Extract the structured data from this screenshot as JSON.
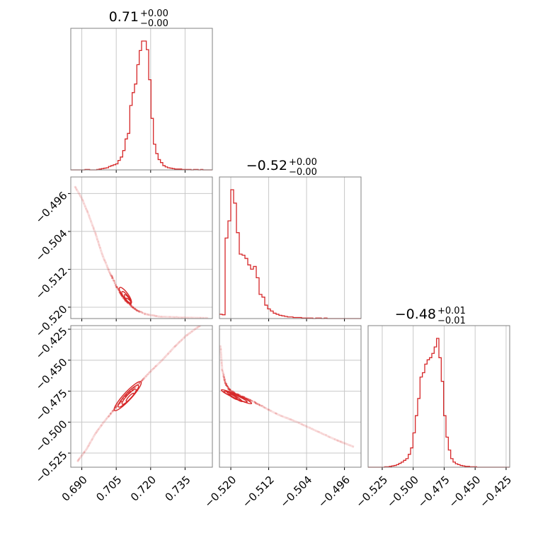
{
  "chart_data": {
    "type": "corner",
    "color": "#d62728",
    "grid": true,
    "params": [
      {
        "title": {
          "value": "0.71",
          "plus": "+0.00",
          "minus": "−0.00"
        },
        "range": [
          0.6852,
          0.7469
        ],
        "ticks": [
          0.69,
          0.705,
          0.72,
          0.735
        ],
        "tick_labels": [
          "0.690",
          "0.705",
          "0.720",
          "0.735"
        ],
        "hist": {
          "x0": 0.6852,
          "x1": 0.7469,
          "counts": [
            0,
            0,
            0,
            0,
            0,
            0,
            1,
            1,
            0,
            0,
            0,
            1,
            2,
            3,
            4,
            5,
            8,
            10,
            12,
            14,
            22,
            30,
            45,
            72,
            85,
            150,
            180,
            200,
            245,
            278,
            300,
            300,
            280,
            210,
            120,
            60,
            38,
            24,
            17,
            10,
            7,
            5,
            4,
            3,
            2,
            2,
            2,
            1,
            1,
            1,
            1,
            0,
            1,
            1,
            0,
            1,
            0,
            0,
            0,
            0
          ]
        }
      },
      {
        "title": {
          "value": "−0.52",
          "plus": "+0.00",
          "minus": "−0.00"
        },
        "range": [
          -0.5224,
          -0.4925
        ],
        "ticks": [
          -0.52,
          -0.512,
          -0.504,
          -0.496
        ],
        "tick_labels": [
          "−0.520",
          "−0.512",
          "−0.504",
          "−0.496"
        ],
        "hist": {
          "x0": -0.5224,
          "x1": -0.4925,
          "counts": [
            8,
            7,
            150,
            182,
            240,
            215,
            160,
            120,
            118,
            112,
            100,
            92,
            97,
            76,
            45,
            40,
            25,
            18,
            14,
            10,
            8,
            6,
            5,
            4,
            3,
            3,
            2,
            2,
            2,
            1,
            1,
            1,
            1,
            0,
            1,
            1,
            0,
            1,
            0,
            0,
            0,
            0,
            0,
            0,
            0,
            0,
            0,
            0,
            0,
            0
          ]
        }
      },
      {
        "title": {
          "value": "−0.48",
          "plus": "+0.01",
          "minus": "−0.01"
        },
        "range": [
          -0.5364,
          -0.4221
        ],
        "ticks": [
          -0.525,
          -0.5,
          -0.475,
          -0.45,
          -0.425
        ],
        "tick_labels": [
          "−0.525",
          "−0.500",
          "−0.475",
          "−0.450",
          "−0.425"
        ],
        "hist": {
          "x0": -0.5364,
          "x1": -0.4221,
          "counts": [
            0,
            0,
            0,
            0,
            0,
            0,
            0,
            1,
            1,
            2,
            3,
            4,
            6,
            9,
            12,
            16,
            20,
            30,
            45,
            80,
            120,
            160,
            210,
            220,
            240,
            250,
            255,
            265,
            280,
            300,
            255,
            200,
            120,
            70,
            40,
            20,
            12,
            8,
            6,
            4,
            3,
            2,
            2,
            1,
            1,
            1,
            0,
            0,
            0,
            0,
            0,
            0,
            0,
            0,
            0,
            0,
            0,
            0,
            0,
            0
          ]
        }
      }
    ],
    "pairs": [
      {
        "x_param": 0,
        "y_param": 1,
        "ridge": [
          [
            0.687,
            -0.4945
          ],
          [
            0.69,
            -0.497
          ],
          [
            0.693,
            -0.5005
          ],
          [
            0.696,
            -0.5045
          ],
          [
            0.699,
            -0.509
          ],
          [
            0.702,
            -0.5125
          ],
          [
            0.705,
            -0.5155
          ],
          [
            0.708,
            -0.518
          ],
          [
            0.711,
            -0.5195
          ],
          [
            0.714,
            -0.5207
          ],
          [
            0.718,
            -0.5215
          ],
          [
            0.724,
            -0.522
          ],
          [
            0.735,
            -0.5222
          ],
          [
            0.745,
            -0.5223
          ]
        ],
        "contours": [
          {
            "cx": 0.709,
            "cy": -0.5175,
            "a": 0.0042,
            "b": 0.0006
          },
          {
            "cx": 0.7095,
            "cy": -0.518,
            "a": 0.0033,
            "b": 0.00045
          },
          {
            "cx": 0.71,
            "cy": -0.5183,
            "a": 0.0024,
            "b": 0.00032
          },
          {
            "cx": 0.7103,
            "cy": -0.5186,
            "a": 0.0014,
            "b": 0.0002
          }
        ]
      },
      {
        "x_param": 0,
        "y_param": 2,
        "ridge": [
          [
            0.688,
            -0.532
          ],
          [
            0.692,
            -0.522
          ],
          [
            0.696,
            -0.509
          ],
          [
            0.7,
            -0.499
          ],
          [
            0.704,
            -0.49
          ],
          [
            0.708,
            -0.481
          ],
          [
            0.712,
            -0.474
          ],
          [
            0.716,
            -0.467
          ],
          [
            0.72,
            -0.459
          ],
          [
            0.725,
            -0.45
          ],
          [
            0.73,
            -0.44
          ],
          [
            0.735,
            -0.431
          ],
          [
            0.74,
            -0.424
          ],
          [
            0.744,
            -0.419
          ]
        ],
        "contours": [
          {
            "cx": 0.71,
            "cy": -0.479,
            "a": 0.0085,
            "b": 0.0032
          },
          {
            "cx": 0.7103,
            "cy": -0.479,
            "a": 0.0064,
            "b": 0.0025
          },
          {
            "cx": 0.7106,
            "cy": -0.4795,
            "a": 0.0044,
            "b": 0.0018
          },
          {
            "cx": 0.711,
            "cy": -0.48,
            "a": 0.0024,
            "b": 0.0011
          }
        ]
      },
      {
        "x_param": 1,
        "y_param": 2,
        "ridge": [
          [
            -0.5222,
            -0.438
          ],
          [
            -0.5218,
            -0.458
          ],
          [
            -0.5212,
            -0.468
          ],
          [
            -0.5205,
            -0.473
          ],
          [
            -0.5195,
            -0.476
          ],
          [
            -0.518,
            -0.479
          ],
          [
            -0.516,
            -0.482
          ],
          [
            -0.514,
            -0.486
          ],
          [
            -0.512,
            -0.49
          ],
          [
            -0.51,
            -0.494
          ],
          [
            -0.506,
            -0.5
          ],
          [
            -0.502,
            -0.507
          ],
          [
            -0.498,
            -0.514
          ],
          [
            -0.494,
            -0.52
          ]
        ],
        "contours": [
          {
            "cx": -0.5188,
            "cy": -0.4795,
            "a": 0.0035,
            "b": 0.0016
          },
          {
            "cx": -0.519,
            "cy": -0.4795,
            "a": 0.0027,
            "b": 0.0012
          },
          {
            "cx": -0.5192,
            "cy": -0.4795,
            "a": 0.0019,
            "b": 0.0009
          },
          {
            "cx": -0.5195,
            "cy": -0.4795,
            "a": 0.0011,
            "b": 0.0006
          }
        ]
      }
    ]
  }
}
